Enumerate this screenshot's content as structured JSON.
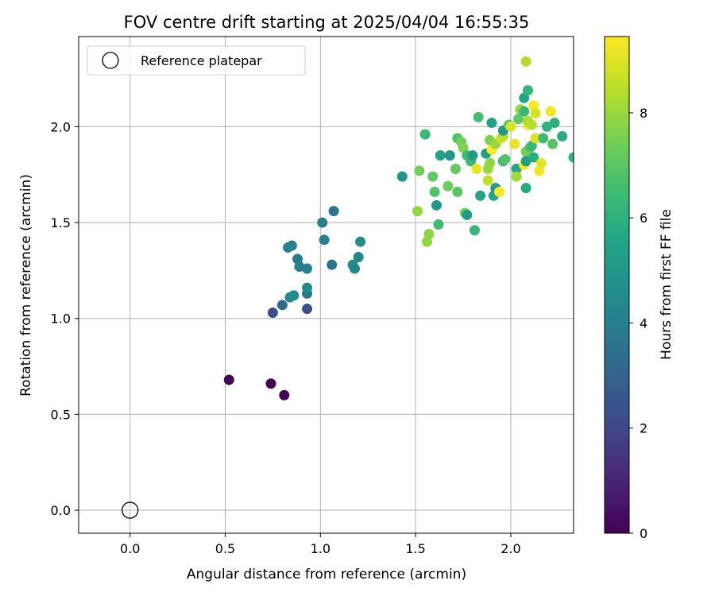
{
  "chart_data": {
    "type": "scatter",
    "title": "FOV centre drift starting at 2025/04/04 16:55:35",
    "xlabel": "Angular distance from reference (arcmin)",
    "ylabel": "Rotation from reference (arcmin)",
    "xlim": [
      -0.27,
      2.33
    ],
    "ylim": [
      -0.12,
      2.47
    ],
    "xticks": [
      0.0,
      0.5,
      1.0,
      1.5,
      2.0
    ],
    "xtick_labels": [
      "0.0",
      "0.5",
      "1.0",
      "1.5",
      "2.0"
    ],
    "yticks": [
      0.0,
      0.5,
      1.0,
      1.5,
      2.0
    ],
    "ytick_labels": [
      "0.0",
      "0.5",
      "1.0",
      "1.5",
      "2.0"
    ],
    "grid": true,
    "legend": {
      "position": "top-left",
      "entries": [
        "Reference platepar"
      ]
    },
    "reference_point": {
      "x": 0.0,
      "y": 0.0,
      "label": "Reference platepar"
    },
    "colorbar": {
      "label": "Hours from first FF file",
      "min": 0,
      "max": 9.45,
      "ticks": [
        0,
        2,
        4,
        6,
        8
      ],
      "tick_labels": [
        "0",
        "2",
        "4",
        "6",
        "8"
      ],
      "colormap": "viridis"
    },
    "points": [
      {
        "x": 0.52,
        "y": 0.68,
        "c": 0.1
      },
      {
        "x": 0.74,
        "y": 0.66,
        "c": 0.1
      },
      {
        "x": 0.81,
        "y": 0.6,
        "c": 0.1
      },
      {
        "x": 0.75,
        "y": 1.03,
        "c": 2.2
      },
      {
        "x": 0.93,
        "y": 1.05,
        "c": 2.3
      },
      {
        "x": 0.8,
        "y": 1.07,
        "c": 3.3
      },
      {
        "x": 0.93,
        "y": 1.13,
        "c": 3.6
      },
      {
        "x": 0.84,
        "y": 1.11,
        "c": 4.4
      },
      {
        "x": 0.86,
        "y": 1.12,
        "c": 4.5
      },
      {
        "x": 0.93,
        "y": 1.16,
        "c": 4.5
      },
      {
        "x": 0.83,
        "y": 1.37,
        "c": 4.1
      },
      {
        "x": 0.85,
        "y": 1.38,
        "c": 4.2
      },
      {
        "x": 0.88,
        "y": 1.31,
        "c": 3.9
      },
      {
        "x": 0.89,
        "y": 1.27,
        "c": 4.0
      },
      {
        "x": 0.93,
        "y": 1.26,
        "c": 4.0
      },
      {
        "x": 1.01,
        "y": 1.5,
        "c": 3.9
      },
      {
        "x": 1.02,
        "y": 1.41,
        "c": 4.1
      },
      {
        "x": 1.07,
        "y": 1.56,
        "c": 3.6
      },
      {
        "x": 1.06,
        "y": 1.28,
        "c": 3.7
      },
      {
        "x": 1.17,
        "y": 1.28,
        "c": 4.4
      },
      {
        "x": 1.18,
        "y": 1.26,
        "c": 4.3
      },
      {
        "x": 1.2,
        "y": 1.32,
        "c": 4.4
      },
      {
        "x": 1.21,
        "y": 1.4,
        "c": 4.6
      },
      {
        "x": 1.43,
        "y": 1.74,
        "c": 4.8
      },
      {
        "x": 1.52,
        "y": 1.77,
        "c": 7.4
      },
      {
        "x": 1.51,
        "y": 1.56,
        "c": 7.9
      },
      {
        "x": 1.55,
        "y": 1.96,
        "c": 6.3
      },
      {
        "x": 1.56,
        "y": 1.4,
        "c": 7.9
      },
      {
        "x": 1.57,
        "y": 1.44,
        "c": 7.8
      },
      {
        "x": 1.59,
        "y": 1.74,
        "c": 7.1
      },
      {
        "x": 1.6,
        "y": 1.66,
        "c": 6.8
      },
      {
        "x": 1.61,
        "y": 1.59,
        "c": 5.0
      },
      {
        "x": 1.62,
        "y": 1.49,
        "c": 6.5
      },
      {
        "x": 1.63,
        "y": 1.85,
        "c": 5.5
      },
      {
        "x": 1.67,
        "y": 1.69,
        "c": 7.3
      },
      {
        "x": 1.68,
        "y": 1.85,
        "c": 5.0
      },
      {
        "x": 1.71,
        "y": 1.78,
        "c": 7.2
      },
      {
        "x": 1.72,
        "y": 1.66,
        "c": 7.0
      },
      {
        "x": 1.72,
        "y": 1.94,
        "c": 6.8
      },
      {
        "x": 1.74,
        "y": 1.92,
        "c": 7.4
      },
      {
        "x": 1.75,
        "y": 1.89,
        "c": 7.6
      },
      {
        "x": 1.76,
        "y": 1.55,
        "c": 7.4
      },
      {
        "x": 1.77,
        "y": 1.54,
        "c": 5.1
      },
      {
        "x": 1.77,
        "y": 1.85,
        "c": 6.5
      },
      {
        "x": 1.79,
        "y": 1.82,
        "c": 6.4
      },
      {
        "x": 1.8,
        "y": 1.85,
        "c": 5.1
      },
      {
        "x": 1.81,
        "y": 1.46,
        "c": 6.3
      },
      {
        "x": 1.82,
        "y": 1.78,
        "c": 9.2
      },
      {
        "x": 1.83,
        "y": 2.05,
        "c": 6.6
      },
      {
        "x": 1.84,
        "y": 1.64,
        "c": 5.5
      },
      {
        "x": 1.87,
        "y": 1.86,
        "c": 5.2
      },
      {
        "x": 1.88,
        "y": 1.72,
        "c": 8.6
      },
      {
        "x": 1.88,
        "y": 1.78,
        "c": 8.0
      },
      {
        "x": 1.89,
        "y": 1.93,
        "c": 7.6
      },
      {
        "x": 1.89,
        "y": 1.81,
        "c": 7.9
      },
      {
        "x": 1.9,
        "y": 1.88,
        "c": 9.4
      },
      {
        "x": 1.9,
        "y": 2.02,
        "c": 5.4
      },
      {
        "x": 1.91,
        "y": 1.64,
        "c": 5.5
      },
      {
        "x": 1.92,
        "y": 1.91,
        "c": 8.0
      },
      {
        "x": 1.92,
        "y": 1.68,
        "c": 5.0
      },
      {
        "x": 1.94,
        "y": 1.66,
        "c": 9.4
      },
      {
        "x": 1.95,
        "y": 1.94,
        "c": 8.8
      },
      {
        "x": 1.96,
        "y": 1.95,
        "c": 8.5
      },
      {
        "x": 1.96,
        "y": 1.98,
        "c": 5.0
      },
      {
        "x": 1.96,
        "y": 1.82,
        "c": 6.4
      },
      {
        "x": 1.97,
        "y": 1.83,
        "c": 6.8
      },
      {
        "x": 1.99,
        "y": 2.01,
        "c": 6.9
      },
      {
        "x": 2.0,
        "y": 2.0,
        "c": 8.9
      },
      {
        "x": 2.02,
        "y": 1.91,
        "c": 9.1
      },
      {
        "x": 2.03,
        "y": 1.78,
        "c": 5.6
      },
      {
        "x": 2.03,
        "y": 1.74,
        "c": 8.1
      },
      {
        "x": 2.04,
        "y": 2.04,
        "c": 7.1
      },
      {
        "x": 2.05,
        "y": 2.09,
        "c": 8.0
      },
      {
        "x": 2.07,
        "y": 2.08,
        "c": 6.3
      },
      {
        "x": 2.07,
        "y": 2.15,
        "c": 5.5
      },
      {
        "x": 2.07,
        "y": 1.8,
        "c": 9.4
      },
      {
        "x": 2.08,
        "y": 2.34,
        "c": 8.4
      },
      {
        "x": 2.08,
        "y": 1.87,
        "c": 7.5
      },
      {
        "x": 2.08,
        "y": 1.68,
        "c": 5.8
      },
      {
        "x": 2.08,
        "y": 1.82,
        "c": 5.3
      },
      {
        "x": 2.09,
        "y": 2.19,
        "c": 6.2
      },
      {
        "x": 2.09,
        "y": 2.01,
        "c": 9.3
      },
      {
        "x": 2.09,
        "y": 2.03,
        "c": 8.3
      },
      {
        "x": 2.1,
        "y": 1.89,
        "c": 7.0
      },
      {
        "x": 2.11,
        "y": 1.9,
        "c": 6.3
      },
      {
        "x": 2.11,
        "y": 2.01,
        "c": 8.4
      },
      {
        "x": 2.12,
        "y": 2.11,
        "c": 9.4
      },
      {
        "x": 2.12,
        "y": 1.84,
        "c": 5.9
      },
      {
        "x": 2.13,
        "y": 2.07,
        "c": 8.9
      },
      {
        "x": 2.13,
        "y": 1.94,
        "c": 9.0
      },
      {
        "x": 2.15,
        "y": 1.77,
        "c": 9.3
      },
      {
        "x": 2.16,
        "y": 1.81,
        "c": 9.1
      },
      {
        "x": 2.17,
        "y": 1.94,
        "c": 6.5
      },
      {
        "x": 2.19,
        "y": 2.0,
        "c": 6.1
      },
      {
        "x": 2.21,
        "y": 2.08,
        "c": 9.3
      },
      {
        "x": 2.22,
        "y": 1.91,
        "c": 6.9
      },
      {
        "x": 2.23,
        "y": 2.02,
        "c": 6.0
      },
      {
        "x": 2.27,
        "y": 1.95,
        "c": 5.8
      },
      {
        "x": 2.33,
        "y": 1.84,
        "c": 6.1
      }
    ]
  }
}
